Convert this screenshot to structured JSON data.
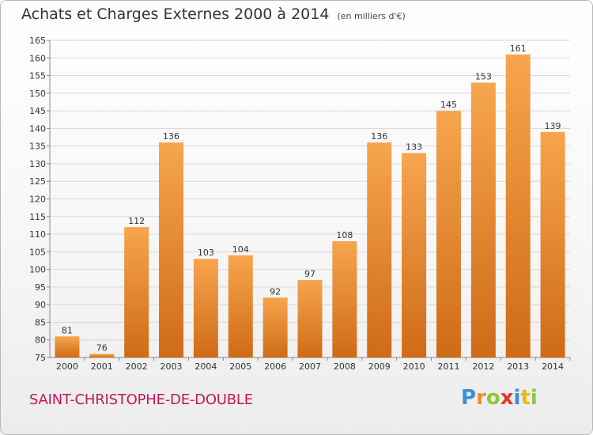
{
  "title": "Achats et Charges Externes 2000 à 2014",
  "unit": "(en milliers d'€)",
  "commune": "SAINT-CHRISTOPHE-DE-DOUBLE",
  "logo": {
    "letters": [
      "P",
      "r",
      "o",
      "x",
      "i",
      "t",
      "i"
    ],
    "colors": [
      "#3a8fd6",
      "#f28c28",
      "#8cc63f",
      "#e2372b",
      "#3a8fd6",
      "#f2b41a",
      "#8cc63f"
    ]
  },
  "colors": {
    "bar_light": "#f7a54e",
    "bar_dark": "#cf6b16",
    "grid": "#d8d8d8",
    "commune": "#c2185b"
  },
  "chart_data": {
    "type": "bar",
    "title": "Achats et Charges Externes 2000 à 2014",
    "subtitle": "(en milliers d'€)",
    "categories": [
      "2000",
      "2001",
      "2002",
      "2003",
      "2004",
      "2005",
      "2006",
      "2007",
      "2008",
      "2009",
      "2010",
      "2011",
      "2012",
      "2013",
      "2014"
    ],
    "values": [
      81,
      76,
      112,
      136,
      103,
      104,
      92,
      97,
      108,
      136,
      133,
      145,
      153,
      161,
      139
    ],
    "ylim": [
      75,
      165
    ],
    "yticks": [
      75,
      80,
      85,
      90,
      95,
      100,
      105,
      110,
      115,
      120,
      125,
      130,
      135,
      140,
      145,
      150,
      155,
      160,
      165
    ],
    "grid": true,
    "legend": "none"
  }
}
